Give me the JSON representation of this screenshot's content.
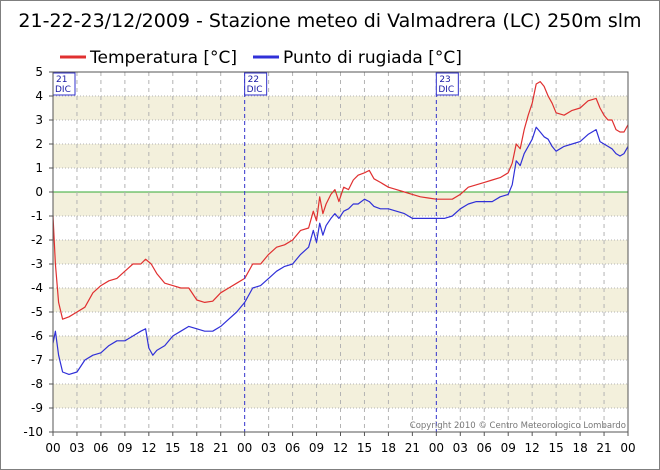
{
  "chart_data": {
    "type": "line",
    "title": "21-22-23/12/2009 - Stazione meteo di Valmadrera (LC) 250m slm",
    "copyright": "Copyright 2010 © Centro Meteorologico Lombardo",
    "ylim": [
      -10,
      5
    ],
    "y_ticks": [
      "5",
      "4",
      "3",
      "2",
      "1",
      "0",
      "-1",
      "-2",
      "-3",
      "-4",
      "-5",
      "-6",
      "-7",
      "-8",
      "-9",
      "-10"
    ],
    "x_hour_labels": [
      "00",
      "03",
      "06",
      "09",
      "12",
      "15",
      "18",
      "21",
      "00",
      "03",
      "06",
      "09",
      "12",
      "15",
      "18",
      "21",
      "00",
      "03",
      "06",
      "09",
      "12",
      "15",
      "18",
      "21",
      "00"
    ],
    "day_markers": [
      {
        "hour": 0,
        "day": "21",
        "month": "DIC"
      },
      {
        "hour": 24,
        "day": "22",
        "month": "DIC"
      },
      {
        "hour": 48,
        "day": "23",
        "month": "DIC"
      }
    ],
    "colors": {
      "temperature": "#e03030",
      "dewpoint": "#3030d8",
      "zero_line": "#33aa33",
      "band": "#f3f0dc",
      "grid": "#b3b3b3",
      "day_line": "#3333cc"
    },
    "series": [
      {
        "name": "Temperatura [°C]",
        "color": "#e03030",
        "points": [
          [
            0,
            -1.0
          ],
          [
            0.3,
            -3.0
          ],
          [
            0.7,
            -4.6
          ],
          [
            1.2,
            -5.3
          ],
          [
            2,
            -5.2
          ],
          [
            3,
            -5.0
          ],
          [
            4,
            -4.8
          ],
          [
            5,
            -4.2
          ],
          [
            6,
            -3.9
          ],
          [
            7,
            -3.7
          ],
          [
            8,
            -3.6
          ],
          [
            9,
            -3.3
          ],
          [
            10,
            -3.0
          ],
          [
            11,
            -3.0
          ],
          [
            11.6,
            -2.8
          ],
          [
            12.3,
            -3.0
          ],
          [
            13,
            -3.4
          ],
          [
            14,
            -3.8
          ],
          [
            15,
            -3.9
          ],
          [
            16,
            -4.0
          ],
          [
            17,
            -4.0
          ],
          [
            18,
            -4.5
          ],
          [
            19,
            -4.6
          ],
          [
            20,
            -4.55
          ],
          [
            21,
            -4.2
          ],
          [
            22,
            -4.0
          ],
          [
            23,
            -3.8
          ],
          [
            24,
            -3.6
          ],
          [
            25,
            -3.0
          ],
          [
            26,
            -3.0
          ],
          [
            27,
            -2.6
          ],
          [
            28,
            -2.3
          ],
          [
            29,
            -2.2
          ],
          [
            30,
            -2.0
          ],
          [
            31,
            -1.6
          ],
          [
            32,
            -1.5
          ],
          [
            32.6,
            -0.8
          ],
          [
            33,
            -1.2
          ],
          [
            33.4,
            -0.2
          ],
          [
            33.8,
            -0.9
          ],
          [
            34.2,
            -0.5
          ],
          [
            34.8,
            -0.1
          ],
          [
            35.3,
            0.1
          ],
          [
            35.8,
            -0.4
          ],
          [
            36.4,
            0.2
          ],
          [
            37,
            0.1
          ],
          [
            37.6,
            0.5
          ],
          [
            38.2,
            0.7
          ],
          [
            39,
            0.8
          ],
          [
            39.6,
            0.9
          ],
          [
            40.2,
            0.55
          ],
          [
            41,
            0.4
          ],
          [
            42,
            0.2
          ],
          [
            43,
            0.1
          ],
          [
            44,
            0.0
          ],
          [
            45,
            -0.1
          ],
          [
            46,
            -0.2
          ],
          [
            47,
            -0.25
          ],
          [
            48,
            -0.3
          ],
          [
            49,
            -0.3
          ],
          [
            50,
            -0.3
          ],
          [
            51,
            -0.1
          ],
          [
            52,
            0.2
          ],
          [
            53,
            0.3
          ],
          [
            54,
            0.4
          ],
          [
            55,
            0.5
          ],
          [
            56,
            0.6
          ],
          [
            57,
            0.8
          ],
          [
            57.5,
            1.2
          ],
          [
            58,
            2.0
          ],
          [
            58.5,
            1.8
          ],
          [
            59,
            2.6
          ],
          [
            59.5,
            3.2
          ],
          [
            60,
            3.7
          ],
          [
            60.5,
            4.5
          ],
          [
            61,
            4.6
          ],
          [
            61.5,
            4.4
          ],
          [
            62,
            4.0
          ],
          [
            62.5,
            3.7
          ],
          [
            63,
            3.3
          ],
          [
            64,
            3.2
          ],
          [
            65,
            3.4
          ],
          [
            66,
            3.5
          ],
          [
            67,
            3.8
          ],
          [
            68,
            3.9
          ],
          [
            68.5,
            3.5
          ],
          [
            69,
            3.2
          ],
          [
            69.5,
            3.0
          ],
          [
            70,
            3.0
          ],
          [
            70.5,
            2.6
          ],
          [
            71,
            2.5
          ],
          [
            71.5,
            2.5
          ],
          [
            72,
            2.8
          ]
        ]
      },
      {
        "name": "Punto di rugiada [°C]",
        "color": "#3030d8",
        "points": [
          [
            0,
            -6.3
          ],
          [
            0.3,
            -5.8
          ],
          [
            0.7,
            -6.8
          ],
          [
            1.2,
            -7.5
          ],
          [
            2,
            -7.6
          ],
          [
            3,
            -7.5
          ],
          [
            4,
            -7.0
          ],
          [
            5,
            -6.8
          ],
          [
            6,
            -6.7
          ],
          [
            7,
            -6.4
          ],
          [
            8,
            -6.2
          ],
          [
            9,
            -6.2
          ],
          [
            10,
            -6.0
          ],
          [
            11,
            -5.8
          ],
          [
            11.6,
            -5.7
          ],
          [
            12,
            -6.5
          ],
          [
            12.5,
            -6.8
          ],
          [
            13,
            -6.6
          ],
          [
            14,
            -6.4
          ],
          [
            15,
            -6.0
          ],
          [
            16,
            -5.8
          ],
          [
            17,
            -5.6
          ],
          [
            18,
            -5.7
          ],
          [
            19,
            -5.8
          ],
          [
            20,
            -5.8
          ],
          [
            21,
            -5.6
          ],
          [
            22,
            -5.3
          ],
          [
            23,
            -5.0
          ],
          [
            24,
            -4.6
          ],
          [
            25,
            -4.0
          ],
          [
            26,
            -3.9
          ],
          [
            27,
            -3.6
          ],
          [
            28,
            -3.3
          ],
          [
            29,
            -3.1
          ],
          [
            30,
            -3.0
          ],
          [
            31,
            -2.6
          ],
          [
            32,
            -2.3
          ],
          [
            32.6,
            -1.6
          ],
          [
            33,
            -2.1
          ],
          [
            33.4,
            -1.3
          ],
          [
            33.8,
            -1.8
          ],
          [
            34.2,
            -1.4
          ],
          [
            34.8,
            -1.1
          ],
          [
            35.3,
            -0.9
          ],
          [
            35.8,
            -1.1
          ],
          [
            36.4,
            -0.8
          ],
          [
            37,
            -0.7
          ],
          [
            37.6,
            -0.5
          ],
          [
            38.2,
            -0.5
          ],
          [
            39,
            -0.3
          ],
          [
            39.6,
            -0.4
          ],
          [
            40.2,
            -0.6
          ],
          [
            41,
            -0.7
          ],
          [
            42,
            -0.7
          ],
          [
            43,
            -0.8
          ],
          [
            44,
            -0.9
          ],
          [
            45,
            -1.1
          ],
          [
            46,
            -1.1
          ],
          [
            47,
            -1.1
          ],
          [
            48,
            -1.1
          ],
          [
            49,
            -1.1
          ],
          [
            50,
            -1.0
          ],
          [
            51,
            -0.7
          ],
          [
            52,
            -0.5
          ],
          [
            53,
            -0.4
          ],
          [
            54,
            -0.4
          ],
          [
            55,
            -0.4
          ],
          [
            56,
            -0.2
          ],
          [
            57,
            -0.1
          ],
          [
            57.5,
            0.3
          ],
          [
            58,
            1.3
          ],
          [
            58.5,
            1.1
          ],
          [
            59,
            1.6
          ],
          [
            59.5,
            1.9
          ],
          [
            60,
            2.2
          ],
          [
            60.5,
            2.7
          ],
          [
            61,
            2.5
          ],
          [
            61.5,
            2.3
          ],
          [
            62,
            2.2
          ],
          [
            62.5,
            1.9
          ],
          [
            63,
            1.7
          ],
          [
            64,
            1.9
          ],
          [
            65,
            2.0
          ],
          [
            66,
            2.1
          ],
          [
            67,
            2.4
          ],
          [
            68,
            2.6
          ],
          [
            68.5,
            2.1
          ],
          [
            69,
            2.0
          ],
          [
            69.5,
            1.9
          ],
          [
            70,
            1.8
          ],
          [
            70.5,
            1.6
          ],
          [
            71,
            1.5
          ],
          [
            71.5,
            1.6
          ],
          [
            72,
            1.9
          ]
        ]
      }
    ]
  }
}
